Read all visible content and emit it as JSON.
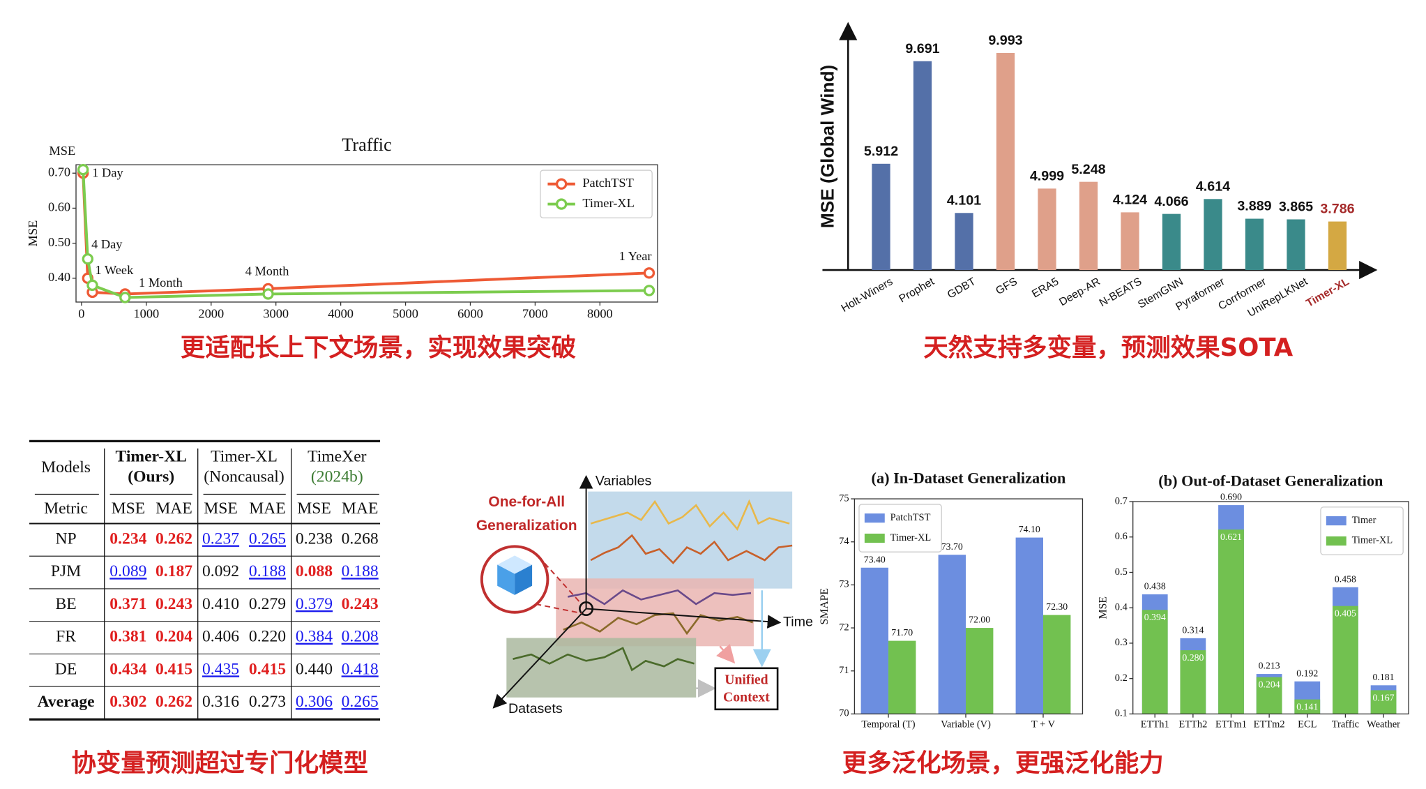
{
  "chart_data": [
    {
      "type": "line",
      "title": "Traffic",
      "corner_label": "MSE",
      "y_label": "MSE",
      "x": [
        24,
        96,
        168,
        672,
        2880,
        8760
      ],
      "series": [
        {
          "name": "PatchTST",
          "color": "#ee5a35",
          "values": [
            0.7,
            0.4,
            0.36,
            0.355,
            0.37,
            0.415
          ]
        },
        {
          "name": "Timer-XL",
          "color": "#7ccc4e",
          "values": [
            0.71,
            0.455,
            0.38,
            0.345,
            0.355,
            0.365
          ]
        }
      ],
      "point_labels": [
        "1 Day",
        "4 Day",
        "1 Week",
        "1 Month",
        "4 Month",
        "1 Year"
      ],
      "xlim": [
        -85,
        8890
      ],
      "ylim": [
        0.332,
        0.724
      ],
      "xticks": [
        0,
        1000,
        2000,
        3000,
        4000,
        5000,
        6000,
        7000,
        8000
      ],
      "yticks": [
        {
          "value": 0.4,
          "label": "0.40"
        },
        {
          "value": 0.5,
          "label": "0.50"
        },
        {
          "value": 0.6,
          "label": "0.60"
        },
        {
          "value": 0.7,
          "label": "0.70"
        }
      ],
      "legend": "upper right",
      "frame": true
    },
    {
      "type": "bar",
      "bar_mode": "single",
      "y_label": "MSE (Global Wind)",
      "categories": [
        "Holt-Winers",
        "Prophet",
        "GDBT",
        "GFS",
        "ERA5",
        "Deep-AR",
        "N-BEATS",
        "StemGNN",
        "Pyraformer",
        "Corrformer",
        "UniRepLKNet",
        "Timer-XL"
      ],
      "values": [
        5.912,
        9.691,
        4.101,
        9.993,
        4.999,
        5.248,
        4.124,
        4.066,
        4.614,
        3.889,
        3.865,
        3.786
      ],
      "colors": [
        "#5470a8",
        "#5470a8",
        "#5470a8",
        "#dfa08a",
        "#dfa08a",
        "#dfa08a",
        "#dfa08a",
        "#3a8a8a",
        "#3a8a8a",
        "#3a8a8a",
        "#3a8a8a",
        "#d4a843"
      ],
      "label_colors": [
        "#111111",
        "#111111",
        "#111111",
        "#111111",
        "#111111",
        "#111111",
        "#111111",
        "#111111",
        "#111111",
        "#111111",
        "#111111",
        "#a52a2a"
      ],
      "ylim": [
        2,
        11
      ],
      "axis_arrows": true,
      "frame": false
    },
    {
      "type": "bar",
      "bar_mode": "group",
      "title": "(a) In-Dataset Generalization",
      "y_label": "SMAPE",
      "categories": [
        "Temporal (T)",
        "Variable (V)",
        "T + V"
      ],
      "series": [
        {
          "name": "PatchTST",
          "color": "#6c8ee0",
          "values": [
            73.4,
            73.7,
            74.1
          ],
          "value_labels": [
            "73.40",
            "73.70",
            "74.10"
          ]
        },
        {
          "name": "Timer-XL",
          "color": "#72c150",
          "values": [
            71.7,
            72.0,
            72.3
          ],
          "value_labels": [
            "71.70",
            "72.00",
            "72.30"
          ]
        }
      ],
      "ylim": [
        70,
        75
      ],
      "yticks": [
        70,
        71,
        72,
        73,
        74,
        75
      ],
      "legend": "upper left",
      "frame": true
    },
    {
      "type": "bar",
      "bar_mode": "overlay",
      "title": "(b) Out-of-Dataset Generalization",
      "y_label": "MSE",
      "categories": [
        "ETTh1",
        "ETTh2",
        "ETTm1",
        "ETTm2",
        "ECL",
        "Traffic",
        "Weather"
      ],
      "series": [
        {
          "name": "Timer",
          "color": "#6c8ee0",
          "values": [
            0.438,
            0.314,
            0.69,
            0.213,
            0.192,
            0.458,
            0.181
          ],
          "value_labels": [
            "0.438",
            "0.314",
            "0.690",
            "0.213",
            "0.192",
            "0.458",
            "0.181"
          ]
        },
        {
          "name": "Timer-XL",
          "color": "#72c150",
          "values": [
            0.394,
            0.28,
            0.621,
            0.204,
            0.141,
            0.405,
            0.167
          ],
          "value_labels": [
            "0.394",
            "0.280",
            "0.621",
            "0.204",
            "0.141",
            "0.405",
            "0.167"
          ]
        }
      ],
      "ylim": [
        0.1,
        0.7
      ],
      "yticks": [
        0.1,
        0.2,
        0.3,
        0.4,
        0.5,
        0.6,
        0.7
      ],
      "legend": "upper right",
      "frame": true
    }
  ],
  "table": {
    "models_label": "Models",
    "metric_label": "Metric",
    "metrics": [
      "MSE",
      "MAE"
    ],
    "models": [
      {
        "name": "Timer-XL",
        "note": "(Ours)"
      },
      {
        "name": "Timer-XL",
        "note": "(Noncausal)"
      },
      {
        "name": "TimeXer",
        "note": "(2024b)"
      }
    ],
    "rows": [
      {
        "name": "NP",
        "values": [
          "0.234",
          "0.262",
          "0.237",
          "0.265",
          "0.238",
          "0.268"
        ],
        "styles": [
          "best",
          "best",
          "second",
          "second",
          "plain",
          "plain"
        ]
      },
      {
        "name": "PJM",
        "values": [
          "0.089",
          "0.187",
          "0.092",
          "0.188",
          "0.088",
          "0.188"
        ],
        "styles": [
          "second",
          "best",
          "plain",
          "second",
          "best",
          "second"
        ]
      },
      {
        "name": "BE",
        "values": [
          "0.371",
          "0.243",
          "0.410",
          "0.279",
          "0.379",
          "0.243"
        ],
        "styles": [
          "best",
          "best",
          "plain",
          "plain",
          "second",
          "best"
        ]
      },
      {
        "name": "FR",
        "values": [
          "0.381",
          "0.204",
          "0.406",
          "0.220",
          "0.384",
          "0.208"
        ],
        "styles": [
          "best",
          "best",
          "plain",
          "plain",
          "second",
          "second"
        ]
      },
      {
        "name": "DE",
        "values": [
          "0.434",
          "0.415",
          "0.435",
          "0.415",
          "0.440",
          "0.418"
        ],
        "styles": [
          "best",
          "best",
          "second",
          "best",
          "plain",
          "second"
        ]
      },
      {
        "name": "Average",
        "values": [
          "0.302",
          "0.262",
          "0.316",
          "0.273",
          "0.306",
          "0.265"
        ],
        "styles": [
          "best",
          "best",
          "plain",
          "plain",
          "second",
          "second"
        ]
      }
    ]
  },
  "diagram": {
    "axes": [
      "Variables",
      "Time",
      "Datasets"
    ],
    "badge": [
      "One-for-All",
      "Generalization"
    ],
    "output": [
      "Unified",
      "Context"
    ]
  },
  "captions": [
    "更适配长上下文场景，实现效果突破",
    "天然支持多变量，预测效果SOTA",
    "协变量预测超过专门化模型",
    "更多泛化场景，更强泛化能力"
  ]
}
